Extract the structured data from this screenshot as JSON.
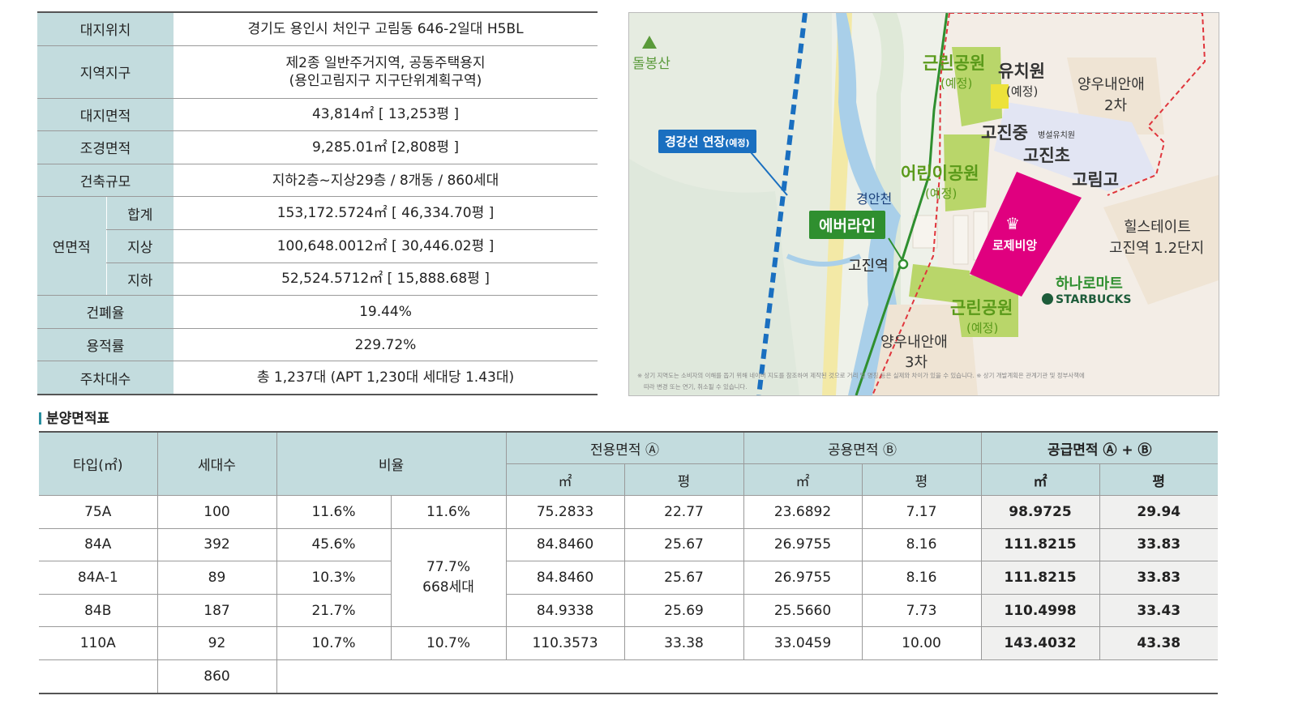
{
  "site_info": {
    "location_label": "대지위치",
    "location": "경기도 용인시 처인구 고림동 646-2일대 H5BL",
    "zoning_label": "지역지구",
    "zoning_line1": "제2종 일반주거지역, 공동주택용지",
    "zoning_line2": "(용인고림지구 지구단위계획구역)",
    "land_area_label": "대지면적",
    "land_area": "43,814㎡ [ 13,253평 ]",
    "landscape_label": "조경면적",
    "landscape": "9,285.01㎡ [2,808평 ]",
    "scale_label": "건축규모",
    "scale": "지하2층~지상29층 / 8개동 / 860세대",
    "floor_area_label": "연면적",
    "total_label": "합계",
    "total": "153,172.5724㎡ [ 46,334.70평 ]",
    "above_label": "지상",
    "above": "100,648.0012㎡ [ 30,446.02평 ]",
    "below_label": "지하",
    "below": "52,524.5712㎡ [ 15,888.68평 ]",
    "coverage_label": "건폐율",
    "coverage": "19.44%",
    "far_label": "용적률",
    "far": "229.72%",
    "parking_label": "주차대수",
    "parking": "총 1,237대 (APT 1,230대 세대당 1.43대)"
  },
  "map": {
    "mountain": "돌봉산",
    "park_n1": "근린공원",
    "park_n2": "(예정)",
    "kinder1": "유치원",
    "kinder2": "(예정)",
    "yangwoo2_1": "양우내안애",
    "yangwoo2_2": "2차",
    "gojin_mid": "고진중",
    "annex_kinder": "병설유치원",
    "gojin_elem": "고진초",
    "gorim_high": "고림고",
    "kids_park1": "어린이공원",
    "kids_park2": "(예정)",
    "gyeonggang": "경강선 연장",
    "gyeonggang_plan": "(예정)",
    "stream": "경안천",
    "everline": "에버라인",
    "station": "고진역",
    "rochevillage": "로제비앙",
    "hillstate1": "힐스테이트",
    "hillstate2": "고진역 1.2단지",
    "mart": "하나로마트",
    "starbucks": "STARBUCKS",
    "park_s1": "근린공원",
    "park_s2": "(예정)",
    "yangwoo3_1": "양우내안애",
    "yangwoo3_2": "3차",
    "disclaimer1": "※ 상기 지역도는 소비자의 이해를 돕기 위해 네이버 지도를 참조하여 제작된 것으로 거리 및 명칭 등은 실제와 차이가 있을 수 있습니다. ※ 상기 개발계획은 관계기관 및 정부사책에",
    "disclaimer2": "따라 변경 또는 연기, 취소될 수 있습니다.",
    "colors": {
      "magenta": "#e0007f",
      "green": "#2f8f2f",
      "blue": "#1a6fc0",
      "park": "#b9d66a"
    }
  },
  "area_table": {
    "title": "분양면적표",
    "headers": {
      "type": "타입(㎡)",
      "units": "세대수",
      "ratio": "비율",
      "exclusive": "전용면적 Ⓐ",
      "common": "공용면적 Ⓑ",
      "supply": "공급면적 Ⓐ + Ⓑ",
      "sqm": "㎡",
      "pyeong": "평"
    },
    "rows": [
      {
        "type": "75A",
        "units": "100",
        "ratio": "11.6%",
        "group": "11.6%",
        "ex_sqm": "75.2833",
        "ex_py": "22.77",
        "cm_sqm": "23.6892",
        "cm_py": "7.17",
        "sp_sqm": "98.9725",
        "sp_py": "29.94"
      },
      {
        "type": "84A",
        "units": "392",
        "ratio": "45.6%",
        "ex_sqm": "84.8460",
        "ex_py": "25.67",
        "cm_sqm": "26.9755",
        "cm_py": "8.16",
        "sp_sqm": "111.8215",
        "sp_py": "33.83"
      },
      {
        "type": "84A-1",
        "units": "89",
        "ratio": "10.3%",
        "ex_sqm": "84.8460",
        "ex_py": "25.67",
        "cm_sqm": "26.9755",
        "cm_py": "8.16",
        "sp_sqm": "111.8215",
        "sp_py": "33.83"
      },
      {
        "type": "84B",
        "units": "187",
        "ratio": "21.7%",
        "ex_sqm": "84.9338",
        "ex_py": "25.69",
        "cm_sqm": "25.5660",
        "cm_py": "7.73",
        "sp_sqm": "110.4998",
        "sp_py": "33.43"
      },
      {
        "type": "110A",
        "units": "92",
        "ratio": "10.7%",
        "group": "10.7%",
        "ex_sqm": "110.3573",
        "ex_py": "33.38",
        "cm_sqm": "33.0459",
        "cm_py": "10.00",
        "sp_sqm": "143.4032",
        "sp_py": "43.38"
      }
    ],
    "group84_line1": "77.7%",
    "group84_line2": "668세대",
    "total_units": "860"
  }
}
